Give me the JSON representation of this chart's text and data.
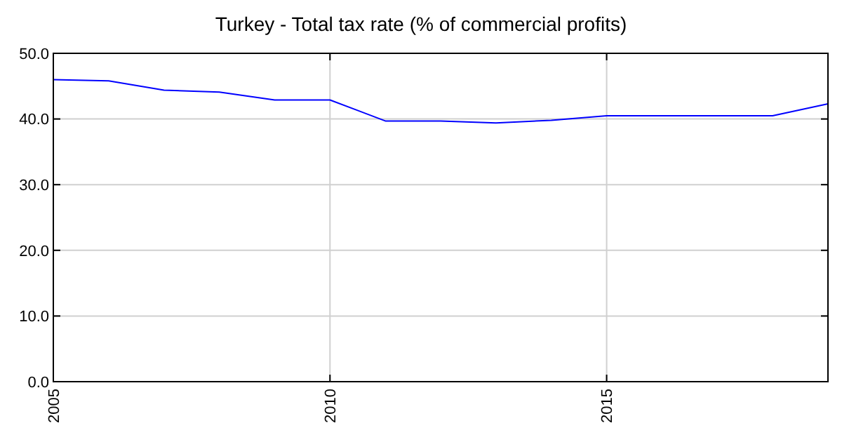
{
  "chart_data": {
    "type": "line",
    "title": "Turkey - Total tax rate (% of commercial profits)",
    "x": [
      2005,
      2006,
      2007,
      2008,
      2009,
      2010,
      2011,
      2012,
      2013,
      2014,
      2015,
      2016,
      2017,
      2018,
      2019
    ],
    "series": [
      {
        "color": "#0000ff",
        "values": [
          46.0,
          45.8,
          44.4,
          44.1,
          42.9,
          42.9,
          39.7,
          39.7,
          39.4,
          39.8,
          40.5,
          40.5,
          40.5,
          40.5,
          42.3
        ]
      }
    ],
    "xlim": [
      2005,
      2019
    ],
    "xticks": [
      2005,
      2010,
      2015
    ],
    "ylim": [
      0,
      50
    ],
    "yticks": [
      {
        "value": 0,
        "label": "0.0"
      },
      {
        "value": 10,
        "label": "10.0"
      },
      {
        "value": 20,
        "label": "20.0"
      },
      {
        "value": 30,
        "label": "30.0"
      },
      {
        "value": 40,
        "label": "40.0"
      },
      {
        "value": 50,
        "label": "50.0"
      }
    ],
    "grid": true,
    "marker": "none",
    "line_style": "solid"
  }
}
